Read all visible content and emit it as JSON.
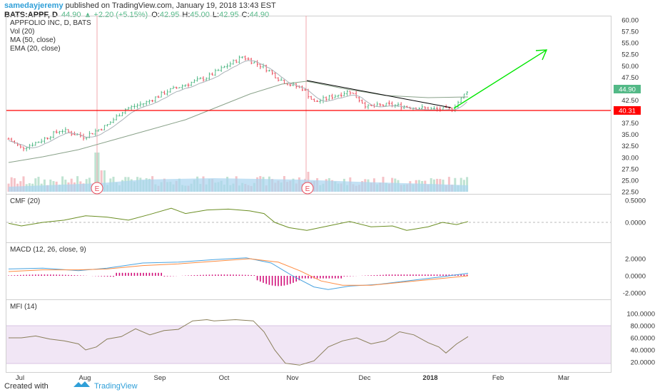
{
  "header": {
    "user": "samedayjeremy",
    "published": " published on TradingView.com, January 19, 2018 13:43 EST",
    "symbol": "BATS:APPF, D",
    "last": "44.90",
    "change_arrow": "▲",
    "change": "+2.20 (+5.15%)",
    "o_label": "O:",
    "o_value": "42.95",
    "h_label": "H:",
    "h_value": "45.00",
    "l_label": "L:",
    "l_value": "42.95",
    "c_label": "C:",
    "c_value": "44.90"
  },
  "legend": {
    "title": "APPFOLIO INC, D, BATS",
    "vol": "Vol (20)",
    "ma": "MA (50, close)",
    "ema": "EMA (20, close)"
  },
  "indicators": {
    "cmf": "CMF (20)",
    "macd": "MACD (12, 26, close, 9)",
    "mfi": "MFI (14)"
  },
  "earnings_marker": "E",
  "price_axis": {
    "ticks": [
      "60.00",
      "57.50",
      "55.00",
      "52.50",
      "50.00",
      "47.50",
      "45.00",
      "42.50",
      "40.00",
      "37.50",
      "35.00",
      "32.50",
      "30.00",
      "27.50",
      "25.00",
      "22.50"
    ],
    "current_price_label": "44.90",
    "support_label": "40.31"
  },
  "cmf_axis": {
    "ticks": [
      "0.5000",
      "0.0000"
    ]
  },
  "macd_axis": {
    "ticks": [
      "2.0000",
      "0.0000",
      "-2.0000"
    ]
  },
  "mfi_axis": {
    "ticks": [
      "100.0000",
      "80.0000",
      "60.0000",
      "40.0000",
      "20.0000"
    ]
  },
  "time_axis": {
    "ticks": [
      "Jul",
      "Aug",
      "Sep",
      "Oct",
      "Nov",
      "Dec",
      "2018",
      "Feb",
      "Mar"
    ]
  },
  "footer": {
    "created_with": "Created with",
    "brand": "TradingView"
  },
  "colors": {
    "up": "#53b987",
    "down": "#eb4d5c",
    "support_line": "#ff0000",
    "trend_line": "#000000",
    "arrow": "#00e600",
    "mfi_band": "#f1e6f5",
    "ma": "#8aa28a",
    "ema": "#9aa0a6"
  },
  "chart_data": [
    {
      "type": "line",
      "title": "APPFOLIO INC, D, BATS",
      "description_series": [
        "Price (daily candles, approximated closes)",
        "MA (50, close)",
        "EMA (20, close)"
      ],
      "x": [
        "Jul",
        "Aug",
        "Sep",
        "Oct",
        "Nov",
        "Dec",
        "2018"
      ],
      "series": [
        {
          "name": "close",
          "values": [
            33.5,
            35.0,
            41.0,
            49.5,
            45.5,
            41.5,
            44.9
          ]
        }
      ],
      "annotations": {
        "support": 40.31,
        "last_close": 44.9
      },
      "ylim": [
        22.5,
        60.0
      ]
    },
    {
      "type": "line",
      "title": "CMF (20)",
      "ylim": [
        -0.4,
        0.6
      ],
      "x": [
        "Jul",
        "Aug",
        "Sep",
        "Oct",
        "Nov",
        "Dec",
        "2018"
      ],
      "series": [
        {
          "name": "CMF (20)",
          "values": [
            -0.05,
            0.1,
            0.25,
            0.3,
            -0.15,
            -0.05,
            0.0
          ]
        }
      ]
    },
    {
      "type": "line",
      "title": "MACD (12, 26, close, 9)",
      "ylim": [
        -2.8,
        3.0
      ],
      "x": [
        "Jul",
        "Aug",
        "Sep",
        "Oct",
        "Nov",
        "Dec",
        "2018"
      ],
      "series": [
        {
          "name": "MACD",
          "values": [
            0.3,
            0.4,
            1.2,
            1.9,
            -1.6,
            -0.6,
            0.3
          ]
        }
      ]
    },
    {
      "type": "line",
      "title": "MFI (14)",
      "ylim": [
        10,
        110
      ],
      "x": [
        "Jul",
        "Aug",
        "Sep",
        "Oct",
        "Nov",
        "Dec",
        "2018"
      ],
      "series": [
        {
          "name": "MFI (14)",
          "values": [
            60,
            58,
            75,
            88,
            18,
            55,
            62
          ]
        }
      ]
    }
  ]
}
